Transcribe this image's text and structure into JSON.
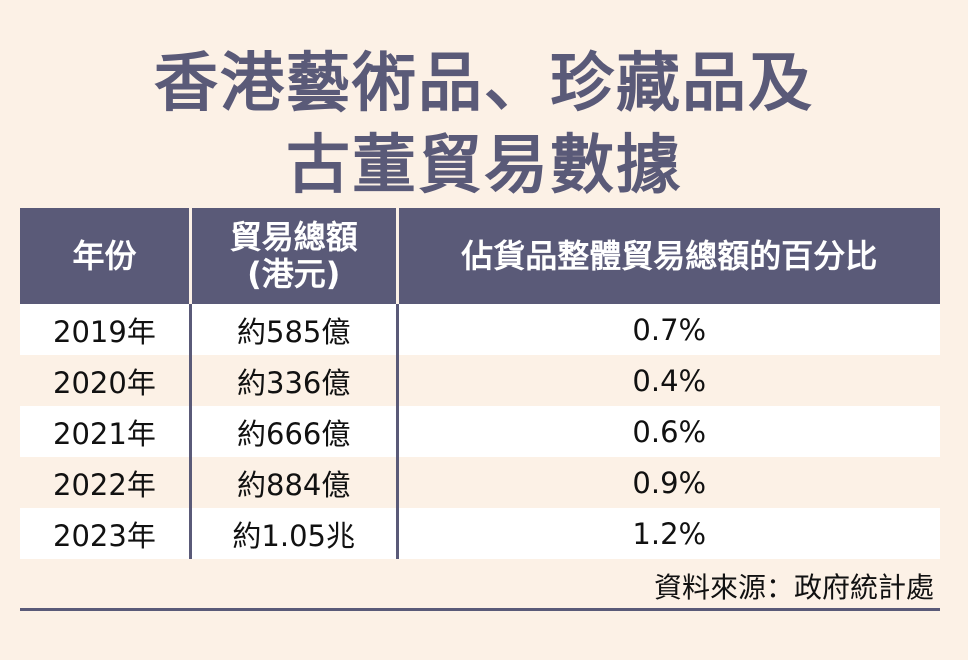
{
  "title": {
    "line1": "香港藝術品、珍藏品及",
    "line2": "古董貿易數據"
  },
  "table": {
    "headers": {
      "year": "年份",
      "total_line1": "貿易總額",
      "total_line2": "(港元)",
      "percent": "佔貨品整體貿易總額的百分比"
    },
    "rows": [
      {
        "year": "2019年",
        "total": "約585億",
        "percent": "0.7%"
      },
      {
        "year": "2020年",
        "total": "約336億",
        "percent": "0.4%"
      },
      {
        "year": "2021年",
        "total": "約666億",
        "percent": "0.6%"
      },
      {
        "year": "2022年",
        "total": "約884億",
        "percent": "0.9%"
      },
      {
        "year": "2023年",
        "total": "約1.05兆",
        "percent": "1.2%"
      }
    ]
  },
  "source": "資料來源：政府統計處",
  "colors": {
    "accent": "#5a5a78",
    "background": "#fcf1e6",
    "row_alt": "#ffffff"
  }
}
